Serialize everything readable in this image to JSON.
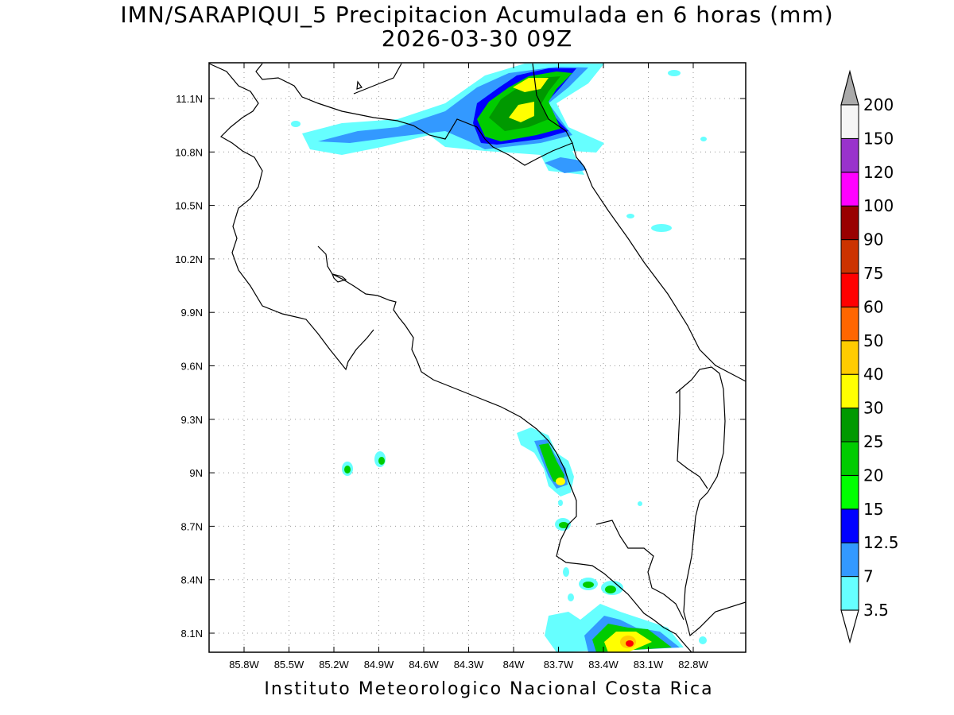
{
  "title_line1": "IMN/SARAPIQUI_5 Precipitacion Acumulada en 6 horas (mm)",
  "title_line2": "2026-03-30 09Z",
  "credit": "Instituto Meteorologico Nacional Costa Rica",
  "map": {
    "lon_range": [
      -86.1,
      -82.5
    ],
    "lat_range": [
      8.0,
      11.3
    ],
    "x_tick_labels": [
      "85.8W",
      "85.5W",
      "85.2W",
      "84.9W",
      "84.6W",
      "84.3W",
      "84W",
      "83.7W",
      "83.4W",
      "83.1W",
      "82.8W"
    ],
    "y_tick_labels": [
      "11.1N",
      "10.8N",
      "10.5N",
      "10.2N",
      "9.9N",
      "9.6N",
      "9.3N",
      "9N",
      "8.7N",
      "8.4N",
      "8.1N"
    ],
    "grid": "dotted"
  },
  "colorbar": {
    "labels": [
      "3.5",
      "7",
      "12.5",
      "15",
      "20",
      "25",
      "30",
      "40",
      "50",
      "60",
      "75",
      "90",
      "100",
      "120",
      "150",
      "200"
    ],
    "colors": [
      "#66ffff",
      "#3399ff",
      "#0000ff",
      "#00ff00",
      "#00cc00",
      "#009900",
      "#ffff00",
      "#ffcc00",
      "#ff6600",
      "#ff0000",
      "#cc3300",
      "#990000",
      "#ff00ff",
      "#9933cc",
      "#f5f5f5",
      "#aaaaaa"
    ],
    "extend": "both"
  }
}
